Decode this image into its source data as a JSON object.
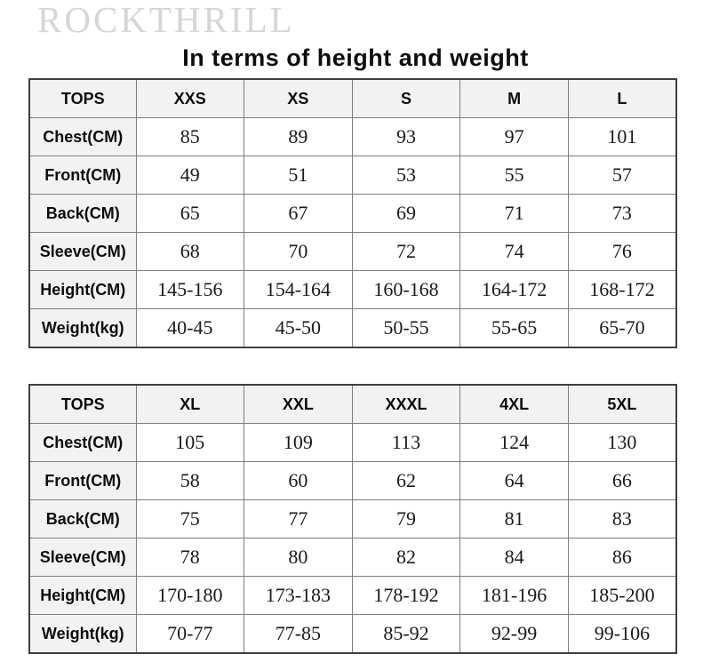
{
  "brand": "ROCKTHRILL",
  "title": "In terms of height and weight",
  "colors": {
    "brand_gray": "#d6d6d6",
    "border_outer": "#3f3f3f",
    "border_inner": "#7f7f7f",
    "header_bg": "#f2f2f2",
    "text": "#0d0d0d"
  },
  "tables": [
    {
      "name": "sizes-xxs-to-l",
      "header": [
        "TOPS",
        "XXS",
        "XS",
        "S",
        "M",
        "L"
      ],
      "rows": [
        {
          "label": "Chest(CM)",
          "values": [
            "85",
            "89",
            "93",
            "97",
            "101"
          ]
        },
        {
          "label": "Front(CM)",
          "values": [
            "49",
            "51",
            "53",
            "55",
            "57"
          ]
        },
        {
          "label": "Back(CM)",
          "values": [
            "65",
            "67",
            "69",
            "71",
            "73"
          ]
        },
        {
          "label": "Sleeve(CM)",
          "values": [
            "68",
            "70",
            "72",
            "74",
            "76"
          ]
        },
        {
          "label": "Height(CM)",
          "values": [
            "145-156",
            "154-164",
            "160-168",
            "164-172",
            "168-172"
          ]
        },
        {
          "label": "Weight(kg)",
          "values": [
            "40-45",
            "45-50",
            "50-55",
            "55-65",
            "65-70"
          ]
        }
      ]
    },
    {
      "name": "sizes-xl-to-5xl",
      "header": [
        "TOPS",
        "XL",
        "XXL",
        "XXXL",
        "4XL",
        "5XL"
      ],
      "rows": [
        {
          "label": "Chest(CM)",
          "values": [
            "105",
            "109",
            "113",
            "124",
            "130"
          ]
        },
        {
          "label": "Front(CM)",
          "values": [
            "58",
            "60",
            "62",
            "64",
            "66"
          ]
        },
        {
          "label": "Back(CM)",
          "values": [
            "75",
            "77",
            "79",
            "81",
            "83"
          ]
        },
        {
          "label": "Sleeve(CM)",
          "values": [
            "78",
            "80",
            "82",
            "84",
            "86"
          ]
        },
        {
          "label": "Height(CM)",
          "values": [
            "170-180",
            "173-183",
            "178-192",
            "181-196",
            "185-200"
          ]
        },
        {
          "label": "Weight(kg)",
          "values": [
            "70-77",
            "77-85",
            "85-92",
            "92-99",
            "99-106"
          ]
        }
      ]
    }
  ]
}
